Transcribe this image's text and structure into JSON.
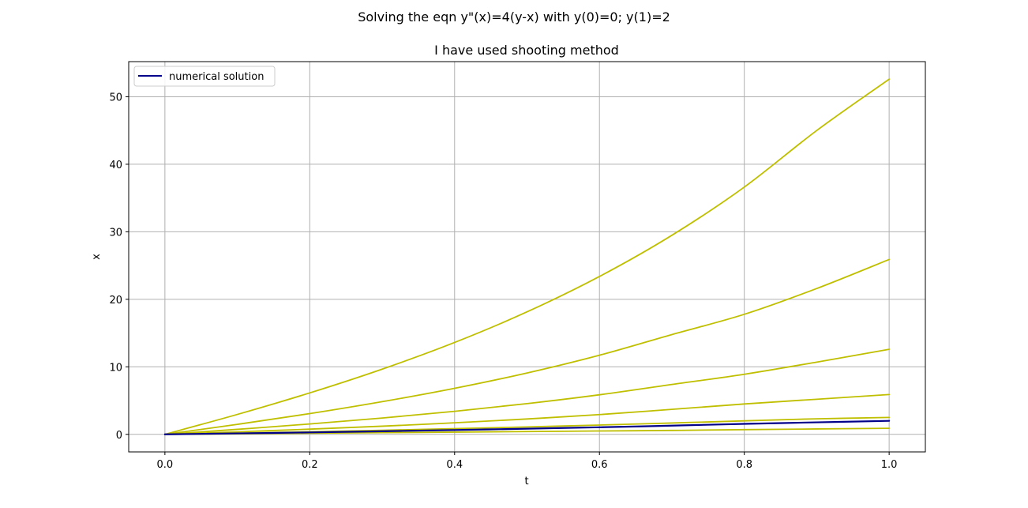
{
  "chart_data": {
    "type": "line",
    "title": "Solving the eqn y\"(x)=4(y-x) with y(0)=0; y(1)=2",
    "subtitle": "I have used shooting method",
    "xlabel": "t",
    "ylabel": "x",
    "xlim": [
      -0.05,
      1.05
    ],
    "ylim": [
      -2.6,
      55.2
    ],
    "xticks": [
      "0.0",
      "0.2",
      "0.4",
      "0.6",
      "0.8",
      "1.0"
    ],
    "yticks": [
      "0",
      "10",
      "20",
      "30",
      "40",
      "50"
    ],
    "grid": true,
    "legend": {
      "position": "top-left",
      "entries": [
        "numerical solution"
      ]
    },
    "colors": {
      "trial": "#bfbf00",
      "solution": "#00008b",
      "grid": "#b0b0b0"
    },
    "x": [
      0.0,
      0.1,
      0.2,
      0.3,
      0.4,
      0.5,
      0.6,
      0.7,
      0.8,
      0.9,
      1.0
    ],
    "series": [
      {
        "role": "trial",
        "values": [
          0.0,
          2.95,
          6.14,
          9.66,
          13.61,
          18.14,
          23.38,
          29.48,
          36.62,
          45.0,
          52.6
        ]
      },
      {
        "role": "trial",
        "values": [
          0.0,
          1.48,
          3.07,
          4.84,
          6.82,
          9.09,
          11.72,
          14.78,
          17.78,
          21.6,
          25.9
        ]
      },
      {
        "role": "trial",
        "values": [
          0.0,
          0.74,
          1.54,
          2.42,
          3.41,
          4.55,
          5.86,
          7.39,
          8.9,
          10.7,
          12.6
        ]
      },
      {
        "role": "trial",
        "values": [
          0.0,
          0.37,
          0.77,
          1.21,
          1.71,
          2.28,
          2.93,
          3.7,
          4.5,
          5.2,
          5.9
        ]
      },
      {
        "role": "trial",
        "values": [
          0.0,
          0.18,
          0.38,
          0.6,
          0.85,
          1.1,
          1.38,
          1.68,
          2.0,
          2.3,
          2.5
        ]
      },
      {
        "role": "trial",
        "values": [
          0.0,
          0.08,
          0.17,
          0.25,
          0.33,
          0.42,
          0.5,
          0.58,
          0.7,
          0.8,
          0.9
        ]
      },
      {
        "role": "solution",
        "name": "numerical solution",
        "values": [
          0.0,
          0.14,
          0.29,
          0.46,
          0.64,
          0.84,
          1.05,
          1.29,
          1.55,
          1.78,
          2.0
        ]
      }
    ]
  }
}
